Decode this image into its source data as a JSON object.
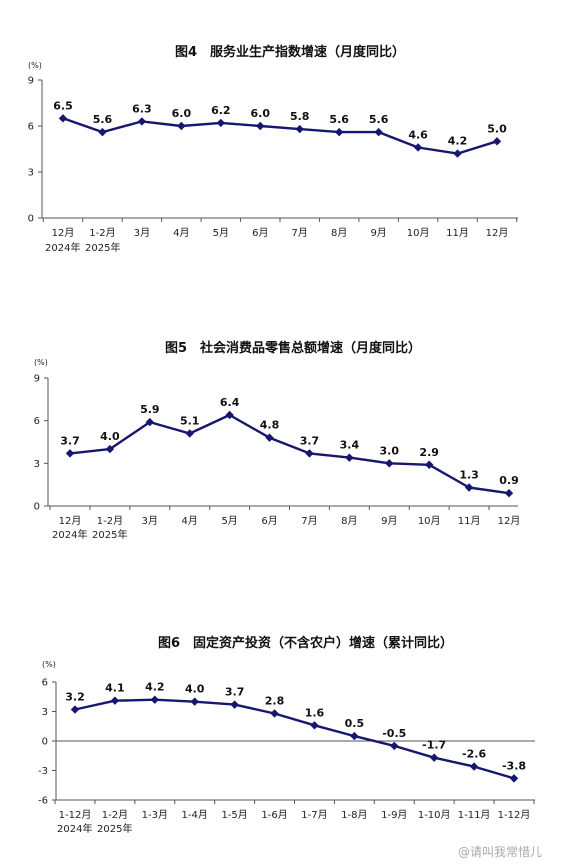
{
  "chart_data": [
    {
      "type": "line",
      "title": "图4　服务业生产指数增速（月度同比）",
      "yunit": "(%)",
      "ylim": [
        0,
        9
      ],
      "yticks": [
        0,
        3,
        6,
        9
      ],
      "categories": [
        "12月",
        "1-2月",
        "3月",
        "4月",
        "5月",
        "6月",
        "7月",
        "8月",
        "9月",
        "10月",
        "11月",
        "12月"
      ],
      "year_labels": [
        "2024年",
        "2025年"
      ],
      "values": [
        6.5,
        5.6,
        6.3,
        6.0,
        6.2,
        6.0,
        5.8,
        5.6,
        5.6,
        4.6,
        4.2,
        5.0
      ],
      "value_labels": [
        "6.5",
        "5.6",
        "6.3",
        "6.0",
        "6.2",
        "6.0",
        "5.8",
        "5.6",
        "5.6",
        "4.6",
        "4.2",
        "5.0"
      ]
    },
    {
      "type": "line",
      "title": "图5　社会消费品零售总额增速（月度同比）",
      "yunit": "(%)",
      "ylim": [
        0,
        9
      ],
      "yticks": [
        0,
        3,
        6,
        9
      ],
      "categories": [
        "12月",
        "1-2月",
        "3月",
        "4月",
        "5月",
        "6月",
        "7月",
        "8月",
        "9月",
        "10月",
        "11月",
        "12月"
      ],
      "year_labels": [
        "2024年",
        "2025年"
      ],
      "values": [
        3.7,
        4.0,
        5.9,
        5.1,
        6.4,
        4.8,
        3.7,
        3.4,
        3.0,
        2.9,
        1.3,
        0.9
      ],
      "value_labels": [
        "3.7",
        "4.0",
        "5.9",
        "5.1",
        "6.4",
        "4.8",
        "3.7",
        "3.4",
        "3.0",
        "2.9",
        "1.3",
        "0.9"
      ]
    },
    {
      "type": "line",
      "title": "图6　固定资产投资（不含农户）增速（累计同比）",
      "yunit": "(%)",
      "ylim": [
        -6,
        6
      ],
      "yticks": [
        -6,
        -3,
        0,
        3,
        6
      ],
      "categories": [
        "1-12月",
        "1-2月",
        "1-3月",
        "1-4月",
        "1-5月",
        "1-6月",
        "1-7月",
        "1-8月",
        "1-9月",
        "1-10月",
        "1-11月",
        "1-12月"
      ],
      "year_labels": [
        "2024年",
        "2025年"
      ],
      "values": [
        3.2,
        4.1,
        4.2,
        4.0,
        3.7,
        2.8,
        1.6,
        0.5,
        -0.5,
        -1.7,
        -2.6,
        -3.8
      ],
      "value_labels": [
        "3.2",
        "4.1",
        "4.2",
        "4.0",
        "3.7",
        "2.8",
        "1.6",
        "0.5",
        "-0.5",
        "-1.7",
        "-2.6",
        "-3.8"
      ]
    }
  ],
  "watermark": "@请叫我常惜儿"
}
